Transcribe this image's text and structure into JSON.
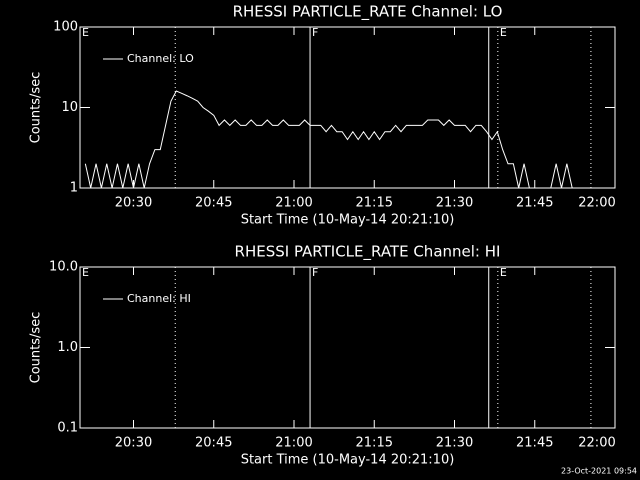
{
  "chart_data": [
    {
      "type": "line",
      "title": "RHESSI PARTICLE_RATE Channel: LO",
      "x_label": "Start Time (10-May-14 20:21:10)",
      "y_label": "Counts/sec",
      "log_y": true,
      "xlim": [
        20,
        120
      ],
      "ylim": [
        1,
        100
      ],
      "yticks": [
        1,
        10,
        100
      ],
      "xticks": [
        {
          "value": 30,
          "label": "20:30"
        },
        {
          "value": 45,
          "label": "20:45"
        },
        {
          "value": 60,
          "label": "21:00"
        },
        {
          "value": 75,
          "label": "21:15"
        },
        {
          "value": 90,
          "label": "21:30"
        },
        {
          "value": 105,
          "label": "21:45"
        },
        {
          "value": 120,
          "label": "22:00"
        }
      ],
      "markers": [
        {
          "x": 37.8,
          "dotted": true
        },
        {
          "x": 63,
          "dotted": false
        },
        {
          "x": 96.4,
          "dotted": false
        },
        {
          "x": 98.1,
          "dotted": true
        },
        {
          "x": 115.5,
          "dotted": true
        }
      ],
      "flags": [
        {
          "label": "E",
          "x": 20
        },
        {
          "label": "F",
          "x": 63
        },
        {
          "label": "E",
          "x": 98.1
        }
      ],
      "x": [
        21,
        22,
        23,
        24,
        25,
        26,
        27,
        28,
        29,
        30,
        31,
        32,
        33,
        34,
        35,
        36,
        37,
        38,
        39,
        40,
        41,
        42,
        43,
        44,
        45,
        46,
        47,
        48,
        49,
        50,
        51,
        52,
        53,
        54,
        55,
        56,
        57,
        58,
        59,
        60,
        61,
        62,
        63,
        64,
        65,
        66,
        67,
        68,
        69,
        70,
        71,
        72,
        73,
        74,
        75,
        76,
        77,
        78,
        79,
        80,
        81,
        82,
        83,
        84,
        85,
        86,
        87,
        88,
        89,
        90,
        91,
        92,
        93,
        94,
        95,
        96,
        97,
        98,
        99,
        100,
        101,
        102,
        103,
        104,
        105,
        106,
        107,
        108,
        109,
        110,
        111,
        112
      ],
      "series": [
        {
          "name": "Channel: LO",
          "color": "#ffffff",
          "values": [
            2,
            1,
            2,
            1,
            2,
            1,
            2,
            1,
            2,
            1,
            2,
            1,
            2,
            3,
            3,
            6,
            12,
            16,
            15,
            14,
            13,
            12,
            10,
            9,
            8,
            6,
            7,
            6,
            7,
            6,
            6,
            7,
            6,
            6,
            7,
            6,
            6,
            7,
            6,
            6,
            6,
            7,
            6,
            6,
            6,
            5,
            6,
            5,
            5,
            4,
            5,
            4,
            5,
            4,
            5,
            4,
            5,
            5,
            6,
            5,
            6,
            6,
            6,
            6,
            7,
            7,
            7,
            6,
            7,
            6,
            6,
            6,
            5,
            6,
            6,
            5,
            4,
            5,
            3,
            2,
            2,
            1,
            2,
            1,
            1,
            1,
            1,
            1,
            2,
            1,
            2,
            1
          ]
        }
      ]
    },
    {
      "type": "line",
      "title": "RHESSI PARTICLE_RATE Channel: HI",
      "x_label": "Start Time (10-May-14 20:21:10)",
      "y_label": "Counts/sec",
      "log_y": true,
      "xlim": [
        20,
        120
      ],
      "ylim": [
        0.1,
        10
      ],
      "yticks": [
        0.1,
        {
          "value": 1,
          "label": "1.0"
        },
        {
          "value": 10,
          "label": "10.0"
        }
      ],
      "xticks": [
        {
          "value": 30,
          "label": "20:30"
        },
        {
          "value": 45,
          "label": "20:45"
        },
        {
          "value": 60,
          "label": "21:00"
        },
        {
          "value": 75,
          "label": "21:15"
        },
        {
          "value": 90,
          "label": "21:30"
        },
        {
          "value": 105,
          "label": "21:45"
        },
        {
          "value": 120,
          "label": "22:00"
        }
      ],
      "markers": [
        {
          "x": 37.8,
          "dotted": true
        },
        {
          "x": 63,
          "dotted": false
        },
        {
          "x": 96.4,
          "dotted": false
        },
        {
          "x": 98.1,
          "dotted": true
        },
        {
          "x": 115.5,
          "dotted": true
        }
      ],
      "flags": [
        {
          "label": "E",
          "x": 20
        },
        {
          "label": "F",
          "x": 63
        },
        {
          "label": "E",
          "x": 98.1
        }
      ],
      "x": [],
      "series": [
        {
          "name": "Channel: HI",
          "color": "#ffffff",
          "values": []
        }
      ]
    }
  ],
  "timestamp": "23-Oct-2021 09:54"
}
